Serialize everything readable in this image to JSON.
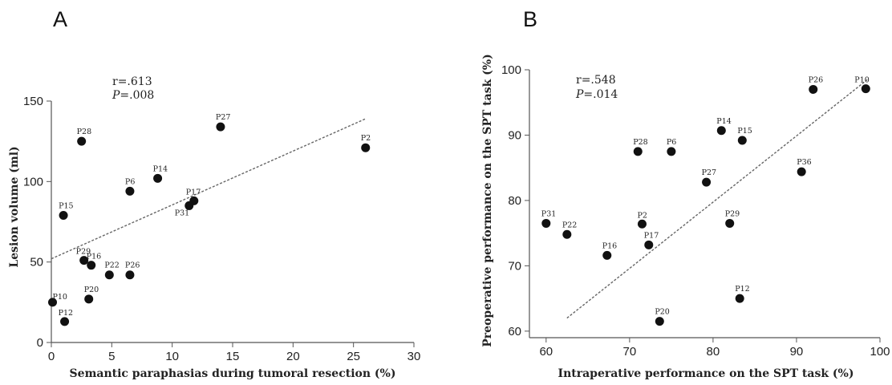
{
  "chart_data": [
    {
      "type": "scatter",
      "panel_label": "A",
      "xlabel": "Semantic paraphasias during tumoral resection (%)",
      "ylabel": "Lesion volume (ml)",
      "xlim": [
        0,
        30
      ],
      "ylim": [
        0,
        150
      ],
      "xticks": [
        0,
        5,
        10,
        15,
        20,
        25,
        30
      ],
      "yticks": [
        0,
        50,
        100,
        150
      ],
      "stats": {
        "r": "r=.613",
        "p_label": "P",
        "p_value": "=.008"
      },
      "fit_line": [
        [
          0,
          52
        ],
        [
          26,
          139
        ]
      ],
      "points": [
        {
          "label": "P2",
          "x": 26.0,
          "y": 121
        },
        {
          "label": "P27",
          "x": 14.0,
          "y": 134
        },
        {
          "label": "P28",
          "x": 2.5,
          "y": 125
        },
        {
          "label": "P14",
          "x": 8.8,
          "y": 102
        },
        {
          "label": "P6",
          "x": 6.5,
          "y": 94
        },
        {
          "label": "P17",
          "x": 11.8,
          "y": 88
        },
        {
          "label": "P31",
          "x": 11.4,
          "y": 85
        },
        {
          "label": "P15",
          "x": 1.0,
          "y": 79
        },
        {
          "label": "P29",
          "x": 2.7,
          "y": 51
        },
        {
          "label": "P16",
          "x": 3.3,
          "y": 48
        },
        {
          "label": "P22",
          "x": 4.8,
          "y": 42
        },
        {
          "label": "P26",
          "x": 6.5,
          "y": 42
        },
        {
          "label": "P20",
          "x": 3.1,
          "y": 27
        },
        {
          "label": "P10",
          "x": 0.1,
          "y": 25
        },
        {
          "label": "P12",
          "x": 1.1,
          "y": 13
        }
      ]
    },
    {
      "type": "scatter",
      "panel_label": "B",
      "xlabel": "Intraperative performance on the SPT task (%)",
      "ylabel": "Preoperative performance on the SPT task (%)",
      "xlim": [
        58,
        100
      ],
      "ylim": [
        59,
        100
      ],
      "xticks": [
        60,
        70,
        80,
        90,
        100
      ],
      "yticks": [
        60,
        70,
        80,
        90,
        100
      ],
      "stats": {
        "r": "r=.548",
        "p_label": "P",
        "p_value": "=.014"
      },
      "fit_line": [
        [
          62.5,
          62
        ],
        [
          98.5,
          98.5
        ]
      ],
      "points": [
        {
          "label": "P10",
          "x": 98.3,
          "y": 97.1
        },
        {
          "label": "P26",
          "x": 92.0,
          "y": 97.0
        },
        {
          "label": "P14",
          "x": 81.0,
          "y": 90.7
        },
        {
          "label": "P15",
          "x": 83.5,
          "y": 89.2
        },
        {
          "label": "P28",
          "x": 71.0,
          "y": 87.5
        },
        {
          "label": "P6",
          "x": 75.0,
          "y": 87.5
        },
        {
          "label": "P36",
          "x": 90.6,
          "y": 84.4
        },
        {
          "label": "P27",
          "x": 79.2,
          "y": 82.8
        },
        {
          "label": "P31",
          "x": 60.0,
          "y": 76.5
        },
        {
          "label": "P2",
          "x": 71.5,
          "y": 76.4
        },
        {
          "label": "P29",
          "x": 82.0,
          "y": 76.5
        },
        {
          "label": "P22",
          "x": 62.5,
          "y": 74.8
        },
        {
          "label": "P17",
          "x": 72.3,
          "y": 73.2
        },
        {
          "label": "P16",
          "x": 67.3,
          "y": 71.6
        },
        {
          "label": "P12",
          "x": 83.2,
          "y": 65.0
        },
        {
          "label": "P20",
          "x": 73.6,
          "y": 61.5
        }
      ]
    }
  ]
}
